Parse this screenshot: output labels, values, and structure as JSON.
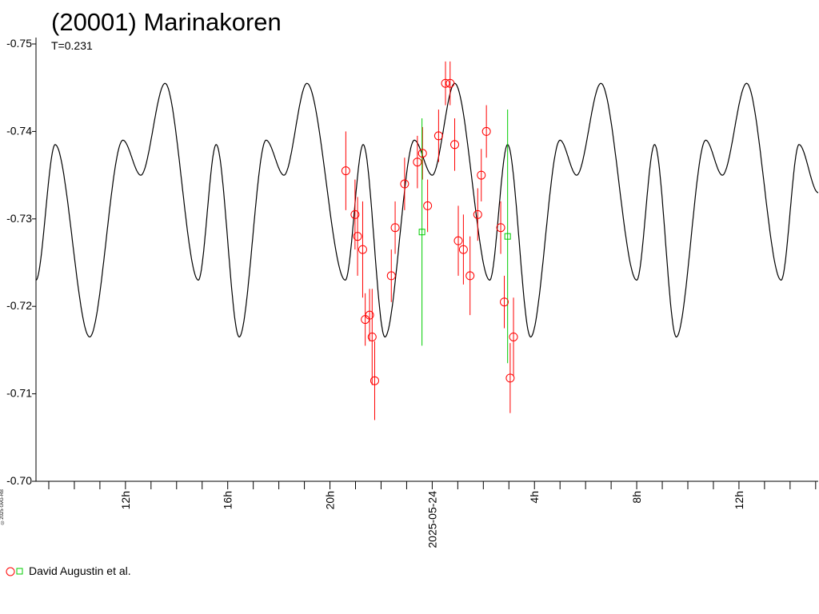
{
  "chart_data": {
    "type": "line",
    "title": "(20001) Marinakoren",
    "subtitle": "T=0.231",
    "ylim": [
      -0.75,
      -0.7
    ],
    "y_inverted": true,
    "y_ticks": [
      -0.75,
      -0.74,
      -0.73,
      -0.72,
      -0.71,
      -0.7
    ],
    "y_tick_labels": [
      "-0.75",
      "-0.74",
      "-0.73",
      "-0.72",
      "-0.71",
      "-0.70"
    ],
    "x_range_hours": [
      8.5,
      39.1
    ],
    "x_tick_labels": [
      {
        "hour": 12,
        "label": "12h"
      },
      {
        "hour": 16,
        "label": "16h"
      },
      {
        "hour": 20,
        "label": "20h"
      },
      {
        "hour": 24,
        "label": "2025-05-24"
      },
      {
        "hour": 28,
        "label": "4h"
      },
      {
        "hour": 32,
        "label": "8h"
      },
      {
        "hour": 36,
        "label": "12h"
      }
    ],
    "grid": false,
    "legend_position": "bottom-left",
    "series": [
      {
        "name": "David Augustin et al.",
        "marker": "circle",
        "color": "#ff0000",
        "points": [
          [
            20.62,
            -0.7355,
            0.0045
          ],
          [
            20.98,
            -0.7305,
            0.004
          ],
          [
            21.08,
            -0.728,
            0.0045
          ],
          [
            21.28,
            -0.7265,
            0.0055
          ],
          [
            21.38,
            -0.7185,
            0.003
          ],
          [
            21.55,
            -0.719,
            0.003
          ],
          [
            21.65,
            -0.7165,
            0.0055
          ],
          [
            21.75,
            -0.7115,
            0.0045
          ],
          [
            22.4,
            -0.7235,
            0.003
          ],
          [
            22.55,
            -0.729,
            0.003
          ],
          [
            22.92,
            -0.734,
            0.003
          ],
          [
            23.42,
            -0.7365,
            0.003
          ],
          [
            23.62,
            -0.7375,
            0.003
          ],
          [
            23.82,
            -0.7315,
            0.003
          ],
          [
            24.25,
            -0.7395,
            0.003
          ],
          [
            24.52,
            -0.7455,
            0.0025
          ],
          [
            24.7,
            -0.7455,
            0.0025
          ],
          [
            24.88,
            -0.7385,
            0.003
          ],
          [
            25.02,
            -0.7275,
            0.004
          ],
          [
            25.22,
            -0.7265,
            0.004
          ],
          [
            25.48,
            -0.7235,
            0.0045
          ],
          [
            25.78,
            -0.7305,
            0.003
          ],
          [
            25.92,
            -0.735,
            0.003
          ],
          [
            26.12,
            -0.74,
            0.003
          ],
          [
            26.68,
            -0.729,
            0.003
          ],
          [
            26.82,
            -0.7205,
            0.003
          ],
          [
            27.05,
            -0.7118,
            0.004
          ],
          [
            27.18,
            -0.7165,
            0.0045
          ]
        ]
      },
      {
        "name": "",
        "marker": "square",
        "color": "#00cc00",
        "points": [
          [
            23.6,
            -0.7285,
            0.013
          ],
          [
            26.95,
            -0.728,
            0.0145
          ]
        ]
      }
    ],
    "model_curve": {
      "color": "#000000",
      "mean": -0.7315,
      "period_hours": 5.5,
      "harmonics": [
        {
          "k": 1,
          "a": 0.003,
          "phase_hour": 18.2
        },
        {
          "k": 2,
          "a": 0.008,
          "phase_hour": 18.75
        }
      ],
      "sequence": [
        {
          "x": 8.5,
          "y": -0.723
        },
        {
          "x": 9.25,
          "y": -0.7385
        },
        {
          "x": 10.6,
          "y": -0.7165
        },
        {
          "x": 11.9,
          "y": -0.739
        },
        {
          "x": 12.6,
          "y": -0.735
        },
        {
          "x": 13.55,
          "y": -0.7455
        },
        {
          "x": 14.85,
          "y": -0.723
        },
        {
          "x": 15.55,
          "y": -0.7385
        },
        {
          "x": 16.45,
          "y": -0.7165
        },
        {
          "x": 17.5,
          "y": -0.739
        },
        {
          "x": 18.2,
          "y": -0.735
        },
        {
          "x": 19.1,
          "y": -0.7455
        },
        {
          "x": 20.6,
          "y": -0.723
        },
        {
          "x": 21.3,
          "y": -0.7385
        },
        {
          "x": 22.15,
          "y": -0.7165
        },
        {
          "x": 23.3,
          "y": -0.739
        },
        {
          "x": 24.0,
          "y": -0.735
        },
        {
          "x": 24.88,
          "y": -0.7455
        },
        {
          "x": 26.25,
          "y": -0.723
        },
        {
          "x": 26.95,
          "y": -0.7385
        },
        {
          "x": 27.85,
          "y": -0.7165
        },
        {
          "x": 29.0,
          "y": -0.739
        },
        {
          "x": 29.65,
          "y": -0.735
        },
        {
          "x": 30.6,
          "y": -0.7455
        },
        {
          "x": 32.0,
          "y": -0.723
        },
        {
          "x": 32.7,
          "y": -0.7385
        },
        {
          "x": 33.55,
          "y": -0.7165
        },
        {
          "x": 34.7,
          "y": -0.739
        },
        {
          "x": 35.35,
          "y": -0.735
        },
        {
          "x": 36.3,
          "y": -0.7455
        },
        {
          "x": 37.65,
          "y": -0.723
        },
        {
          "x": 38.35,
          "y": -0.7385
        },
        {
          "x": 39.1,
          "y": -0.733
        }
      ]
    }
  },
  "legend": {
    "label": "David Augustin et al."
  },
  "copyright": "©2025 GvG-RB"
}
